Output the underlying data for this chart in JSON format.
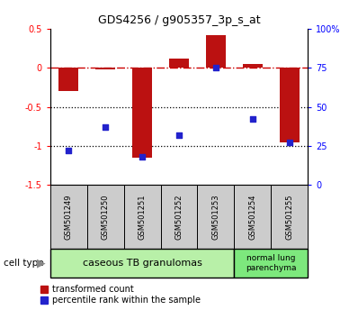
{
  "title": "GDS4256 / g905357_3p_s_at",
  "samples": [
    "GSM501249",
    "GSM501250",
    "GSM501251",
    "GSM501252",
    "GSM501253",
    "GSM501254",
    "GSM501255"
  ],
  "transformed_count": [
    -0.3,
    -0.02,
    -1.15,
    0.12,
    0.42,
    0.05,
    -0.95
  ],
  "percentile_rank": [
    22,
    37,
    18,
    32,
    75,
    42,
    27
  ],
  "ylim_left": [
    -1.5,
    0.5
  ],
  "ylim_right": [
    0,
    100
  ],
  "yticks_left": [
    0.5,
    0,
    -0.5,
    -1.0,
    -1.5
  ],
  "yticks_right": [
    100,
    75,
    50,
    25,
    0
  ],
  "cell_type_groups": [
    {
      "label": "caseous TB granulomas",
      "n": 5,
      "color": "#b8f0a8"
    },
    {
      "label": "normal lung\nparenchyma",
      "n": 2,
      "color": "#7de87d"
    }
  ],
  "bar_color": "#bb1111",
  "scatter_color": "#2222cc",
  "zero_line_color": "#cc0000",
  "dotted_line_color": "#000000",
  "plot_bg": "#ffffff",
  "tick_label_bg": "#cccccc",
  "bar_width": 0.55,
  "legend_labels": [
    "transformed count",
    "percentile rank within the sample"
  ]
}
